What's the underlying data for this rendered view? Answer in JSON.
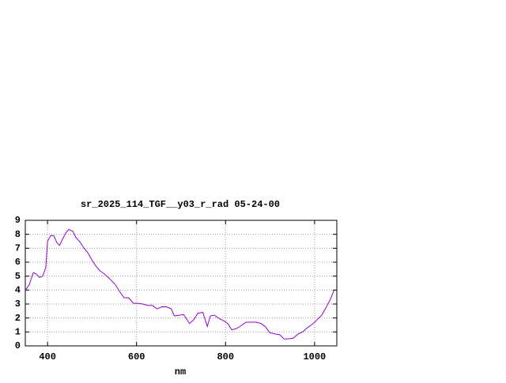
{
  "chart_data": {
    "type": "line",
    "title": "sr_2025_114_TGF__y03_r_rad 05-24-00",
    "x_label": "nm",
    "x": [
      350,
      359,
      368,
      375,
      382,
      389,
      396,
      400,
      407,
      414,
      421,
      427,
      433,
      441,
      448,
      457,
      464,
      473,
      482,
      490,
      499,
      508,
      517,
      528,
      540,
      552,
      563,
      572,
      582,
      593,
      604,
      614,
      625,
      636,
      646,
      657,
      667,
      678,
      685,
      696,
      706,
      719,
      729,
      738,
      749,
      759,
      766,
      775,
      786,
      796,
      805,
      814,
      825,
      835,
      846,
      858,
      869,
      880,
      890,
      899,
      912,
      922,
      931,
      942,
      952,
      963,
      973,
      984,
      995,
      1005,
      1016,
      1025,
      1035,
      1044
    ],
    "series": [
      {
        "color": "#9400d3",
        "values": [
          3.96,
          4.4,
          5.25,
          5.15,
          4.9,
          5.0,
          5.6,
          7.5,
          7.9,
          7.9,
          7.4,
          7.2,
          7.6,
          8.1,
          8.35,
          8.2,
          7.75,
          7.45,
          7.0,
          6.7,
          6.2,
          5.75,
          5.4,
          5.15,
          4.8,
          4.4,
          3.85,
          3.45,
          3.45,
          3.05,
          3.05,
          3.0,
          2.9,
          2.9,
          2.65,
          2.8,
          2.8,
          2.65,
          2.15,
          2.2,
          2.25,
          1.6,
          1.9,
          2.35,
          2.4,
          1.4,
          2.15,
          2.2,
          1.95,
          1.8,
          1.6,
          1.15,
          1.25,
          1.45,
          1.7,
          1.7,
          1.7,
          1.6,
          1.35,
          0.95,
          0.85,
          0.8,
          0.5,
          0.5,
          0.55,
          0.85,
          1.0,
          1.3,
          1.55,
          1.85,
          2.2,
          2.7,
          3.3,
          4.0
        ]
      }
    ],
    "xlim": [
      350,
      1050
    ],
    "xticks": [
      400,
      600,
      800,
      1000
    ],
    "ylim": [
      0,
      9
    ],
    "yticks": [
      0,
      1,
      2,
      3,
      4,
      5,
      6,
      7,
      8,
      9
    ],
    "grid": true
  }
}
